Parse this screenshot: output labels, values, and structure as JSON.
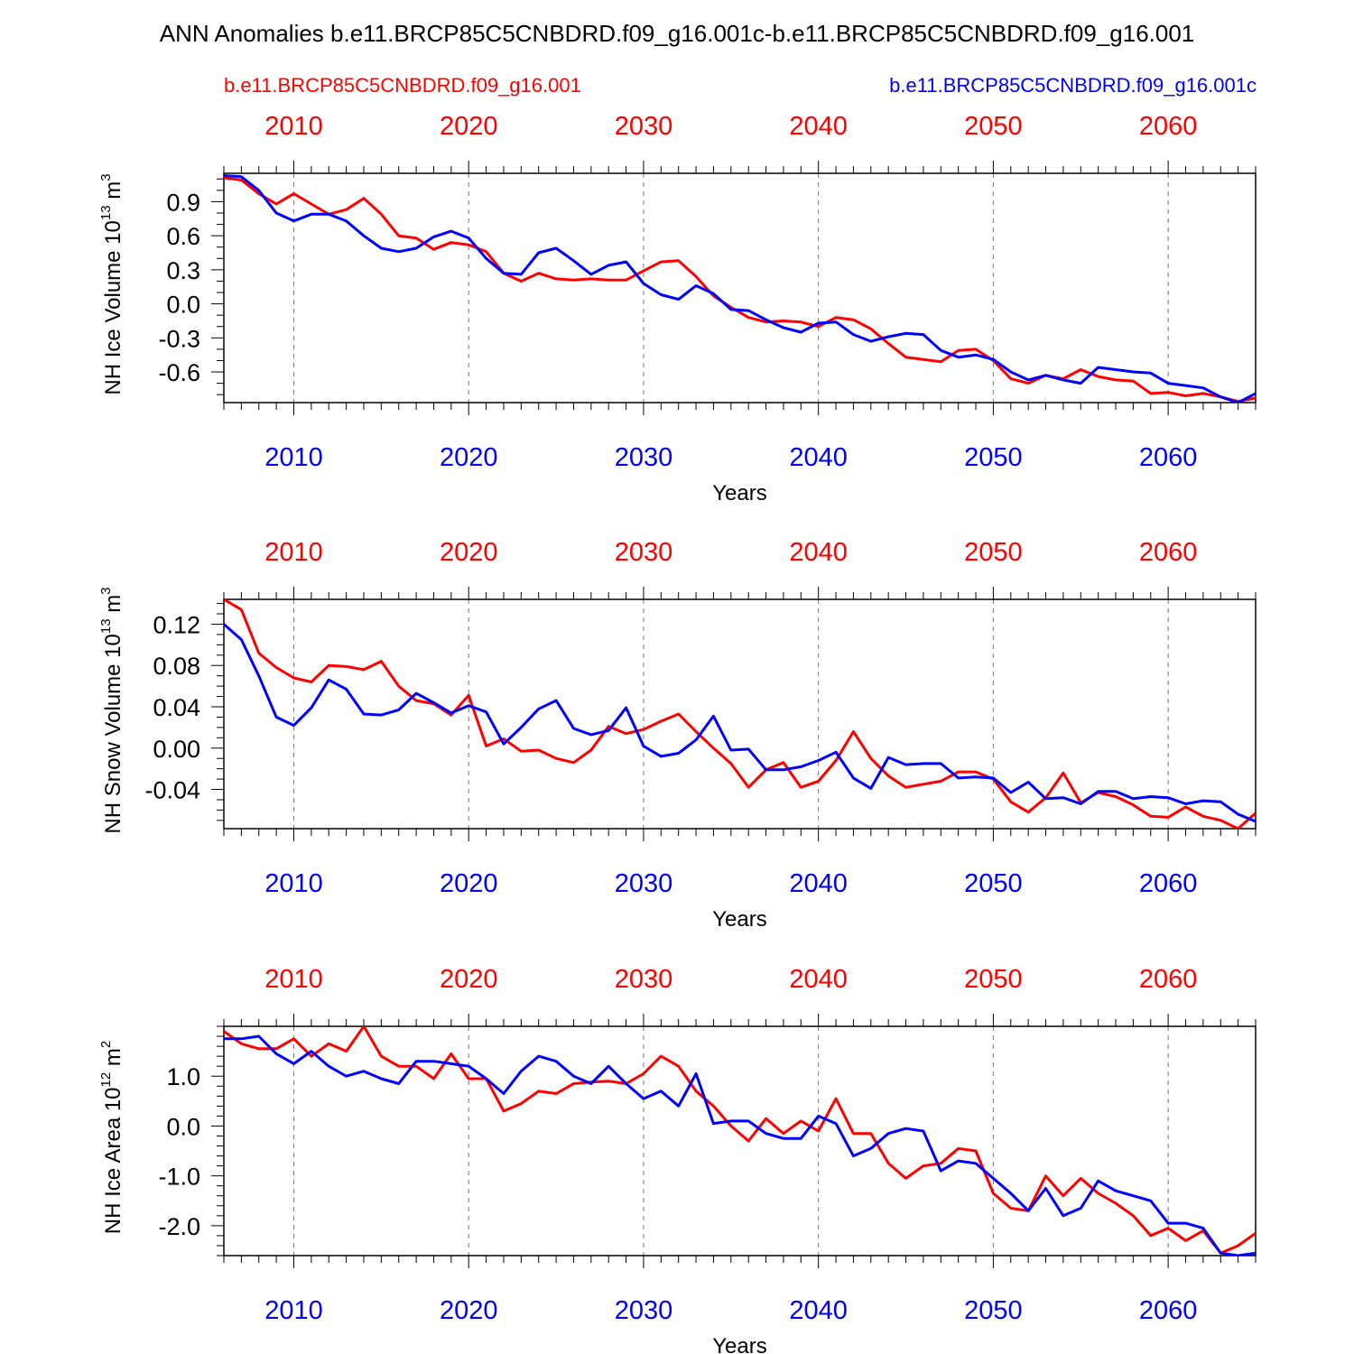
{
  "title": "ANN Anomalies b.e11.BRCP85C5CNBDRD.f09_g16.001c-b.e11.BRCP85C5CNBDRD.f09_g16.001",
  "legend": {
    "red_label": "b.e11.BRCP85C5CNBDRD.f09_g16.001",
    "blue_label": "b.e11.BRCP85C5CNBDRD.f09_g16.001c"
  },
  "colors": {
    "red": "#ff0000",
    "blue": "#0000ff",
    "axis": "#000000",
    "grid": "#777777"
  },
  "chart_data": [
    {
      "type": "line",
      "title": "",
      "ylabel": "NH Ice Volume 10",
      "ylabel_exp": "13",
      "ylabel_unit": " m",
      "ylabel_unit_exp": "3",
      "xlabel": "Years",
      "xlim": [
        2006,
        2065
      ],
      "ylim": [
        -0.87,
        1.15
      ],
      "xticks": [
        2010,
        2020,
        2030,
        2040,
        2050,
        2060
      ],
      "xtick_labels": [
        "2010",
        "2020",
        "2030",
        "2040",
        "2050",
        "2060"
      ],
      "yticks": [
        0.9,
        0.6,
        0.3,
        0.0,
        -0.3,
        -0.6
      ],
      "ytick_labels": [
        "0.9",
        "0.6",
        "0.3",
        "0.0",
        "-0.3",
        "-0.6"
      ],
      "ytick_minor_step": 0.1,
      "x_start": 2006,
      "series": [
        {
          "name": "b.e11.BRCP85C5CNBDRD.f09_g16.001",
          "color": "red",
          "values": [
            1.11,
            1.09,
            0.97,
            0.88,
            0.97,
            0.88,
            0.79,
            0.83,
            0.93,
            0.79,
            0.6,
            0.58,
            0.48,
            0.54,
            0.52,
            0.46,
            0.27,
            0.2,
            0.27,
            0.22,
            0.21,
            0.22,
            0.21,
            0.21,
            0.29,
            0.37,
            0.38,
            0.24,
            0.07,
            -0.03,
            -0.12,
            -0.16,
            -0.15,
            -0.16,
            -0.2,
            -0.12,
            -0.14,
            -0.22,
            -0.35,
            -0.47,
            -0.49,
            -0.51,
            -0.41,
            -0.4,
            -0.5,
            -0.66,
            -0.7,
            -0.63,
            -0.66,
            -0.58,
            -0.64,
            -0.67,
            -0.68,
            -0.79,
            -0.78,
            -0.81,
            -0.79,
            -0.82,
            -0.86,
            -0.83
          ]
        },
        {
          "name": "b.e11.BRCP85C5CNBDRD.f09_g16.001c",
          "color": "blue",
          "values": [
            1.13,
            1.12,
            1.0,
            0.8,
            0.73,
            0.79,
            0.79,
            0.73,
            0.6,
            0.49,
            0.46,
            0.49,
            0.59,
            0.64,
            0.58,
            0.4,
            0.27,
            0.26,
            0.45,
            0.49,
            0.38,
            0.26,
            0.34,
            0.37,
            0.18,
            0.08,
            0.04,
            0.16,
            0.09,
            -0.05,
            -0.06,
            -0.14,
            -0.21,
            -0.25,
            -0.17,
            -0.16,
            -0.27,
            -0.33,
            -0.29,
            -0.26,
            -0.27,
            -0.41,
            -0.47,
            -0.45,
            -0.49,
            -0.6,
            -0.67,
            -0.63,
            -0.67,
            -0.7,
            -0.56,
            -0.58,
            -0.6,
            -0.61,
            -0.7,
            -0.72,
            -0.74,
            -0.82,
            -0.87,
            -0.79
          ]
        }
      ]
    },
    {
      "type": "line",
      "title": "",
      "ylabel": "NH Snow Volume 10",
      "ylabel_exp": "13",
      "ylabel_unit": " m",
      "ylabel_unit_exp": "3",
      "xlabel": "Years",
      "xlim": [
        2006,
        2065
      ],
      "ylim": [
        -0.078,
        0.144
      ],
      "xticks": [
        2010,
        2020,
        2030,
        2040,
        2050,
        2060
      ],
      "xtick_labels": [
        "2010",
        "2020",
        "2030",
        "2040",
        "2050",
        "2060"
      ],
      "yticks": [
        0.12,
        0.08,
        0.04,
        0.0,
        -0.04
      ],
      "ytick_labels": [
        "0.12",
        "0.08",
        "0.04",
        "0.00",
        "-0.04"
      ],
      "ytick_minor_step": 0.01,
      "x_start": 2006,
      "series": [
        {
          "name": "b.e11.BRCP85C5CNBDRD.f09_g16.001",
          "color": "red",
          "values": [
            0.144,
            0.134,
            0.092,
            0.078,
            0.068,
            0.064,
            0.08,
            0.079,
            0.076,
            0.084,
            0.06,
            0.046,
            0.043,
            0.032,
            0.051,
            0.002,
            0.009,
            -0.003,
            -0.002,
            -0.01,
            -0.014,
            -0.002,
            0.021,
            0.014,
            0.018,
            0.026,
            0.033,
            0.016,
            0.0,
            -0.015,
            -0.038,
            -0.021,
            -0.014,
            -0.038,
            -0.032,
            -0.012,
            0.016,
            -0.01,
            -0.027,
            -0.038,
            -0.035,
            -0.032,
            -0.023,
            -0.023,
            -0.03,
            -0.052,
            -0.062,
            -0.048,
            -0.024,
            -0.053,
            -0.043,
            -0.047,
            -0.055,
            -0.066,
            -0.067,
            -0.057,
            -0.066,
            -0.07,
            -0.078,
            -0.063
          ]
        },
        {
          "name": "b.e11.BRCP85C5CNBDRD.f09_g16.001c",
          "color": "blue",
          "values": [
            0.12,
            0.105,
            0.07,
            0.03,
            0.022,
            0.039,
            0.066,
            0.057,
            0.033,
            0.032,
            0.037,
            0.053,
            0.044,
            0.034,
            0.041,
            0.035,
            0.004,
            0.02,
            0.038,
            0.046,
            0.019,
            0.013,
            0.017,
            0.039,
            0.002,
            -0.008,
            -0.005,
            0.008,
            0.031,
            -0.002,
            -0.001,
            -0.021,
            -0.021,
            -0.018,
            -0.012,
            -0.004,
            -0.029,
            -0.039,
            -0.009,
            -0.016,
            -0.015,
            -0.015,
            -0.029,
            -0.028,
            -0.029,
            -0.043,
            -0.033,
            -0.049,
            -0.048,
            -0.054,
            -0.042,
            -0.042,
            -0.049,
            -0.047,
            -0.048,
            -0.054,
            -0.051,
            -0.052,
            -0.064,
            -0.071
          ]
        }
      ]
    },
    {
      "type": "line",
      "title": "",
      "ylabel": "NH Ice Area 10",
      "ylabel_exp": "12",
      "ylabel_unit": " m",
      "ylabel_unit_exp": "2",
      "xlabel": "Years",
      "xlim": [
        2006,
        2065
      ],
      "ylim": [
        -2.6,
        2.0
      ],
      "xticks": [
        2010,
        2020,
        2030,
        2040,
        2050,
        2060
      ],
      "xtick_labels": [
        "2010",
        "2020",
        "2030",
        "2040",
        "2050",
        "2060"
      ],
      "yticks": [
        1.0,
        0.0,
        -1.0,
        -2.0
      ],
      "ytick_labels": [
        "1.0",
        "0.0",
        "-1.0",
        "-2.0"
      ],
      "ytick_minor_step": 0.2,
      "x_start": 2006,
      "series": [
        {
          "name": "b.e11.BRCP85C5CNBDRD.f09_g16.001",
          "color": "red",
          "values": [
            1.9,
            1.65,
            1.55,
            1.55,
            1.75,
            1.4,
            1.65,
            1.5,
            2.0,
            1.4,
            1.2,
            1.2,
            0.95,
            1.45,
            0.95,
            0.95,
            0.3,
            0.45,
            0.7,
            0.65,
            0.85,
            0.88,
            0.9,
            0.85,
            1.05,
            1.4,
            1.2,
            0.7,
            0.4,
            0.0,
            -0.3,
            0.15,
            -0.15,
            0.1,
            -0.1,
            0.55,
            -0.15,
            -0.15,
            -0.75,
            -1.05,
            -0.8,
            -0.75,
            -0.45,
            -0.5,
            -1.35,
            -1.65,
            -1.7,
            -1.0,
            -1.4,
            -1.05,
            -1.35,
            -1.55,
            -1.8,
            -2.2,
            -2.05,
            -2.3,
            -2.1,
            -2.55,
            -2.4,
            -2.15
          ]
        },
        {
          "name": "b.e11.BRCP85C5CNBDRD.f09_g16.001c",
          "color": "blue",
          "values": [
            1.75,
            1.75,
            1.8,
            1.45,
            1.25,
            1.5,
            1.2,
            1.0,
            1.1,
            0.95,
            0.85,
            1.3,
            1.3,
            1.25,
            1.2,
            0.95,
            0.65,
            1.1,
            1.4,
            1.3,
            1.0,
            0.85,
            1.2,
            0.85,
            0.55,
            0.7,
            0.4,
            1.05,
            0.05,
            0.1,
            0.1,
            -0.15,
            -0.25,
            -0.25,
            0.2,
            0.05,
            -0.6,
            -0.45,
            -0.15,
            -0.05,
            -0.1,
            -0.9,
            -0.7,
            -0.75,
            -1.05,
            -1.35,
            -1.7,
            -1.25,
            -1.8,
            -1.65,
            -1.1,
            -1.3,
            -1.4,
            -1.5,
            -1.95,
            -1.95,
            -2.05,
            -2.55,
            -2.6,
            -2.55
          ]
        }
      ]
    }
  ]
}
